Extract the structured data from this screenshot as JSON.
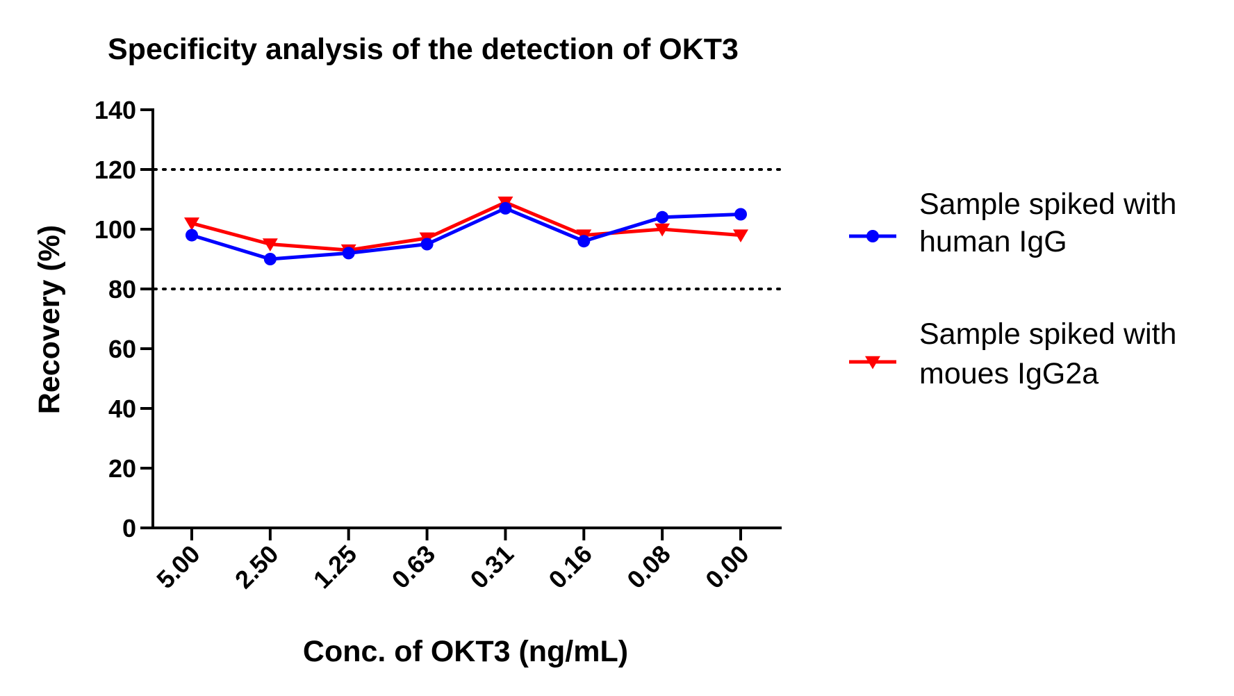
{
  "chart_data": {
    "type": "line",
    "title": "Specificity analysis of the detection of OKT3",
    "xlabel": "Conc. of OKT3 (ng/mL)",
    "ylabel": "Recovery (%)",
    "categories": [
      "5.00",
      "2.50",
      "1.25",
      "0.63",
      "0.31",
      "0.16",
      "0.08",
      "0.00"
    ],
    "ylim": [
      0,
      140
    ],
    "yticks": [
      0,
      20,
      40,
      60,
      80,
      100,
      120,
      140
    ],
    "reference_lines": [
      80,
      120
    ],
    "grid": false,
    "legend_position": "right",
    "series": [
      {
        "name": "Sample spiked with human IgG",
        "name_lines": [
          "Sample spiked with",
          "human IgG"
        ],
        "color": "#0000ff",
        "marker": "circle",
        "values": [
          98,
          90,
          92,
          95,
          107,
          96,
          104,
          105
        ]
      },
      {
        "name": "Sample spiked with moues IgG2a",
        "name_lines": [
          "Sample spiked with",
          "moues IgG2a"
        ],
        "color": "#ff0000",
        "marker": "triangle-down",
        "values": [
          102,
          95,
          93,
          97,
          109,
          98,
          100,
          98
        ]
      }
    ]
  }
}
